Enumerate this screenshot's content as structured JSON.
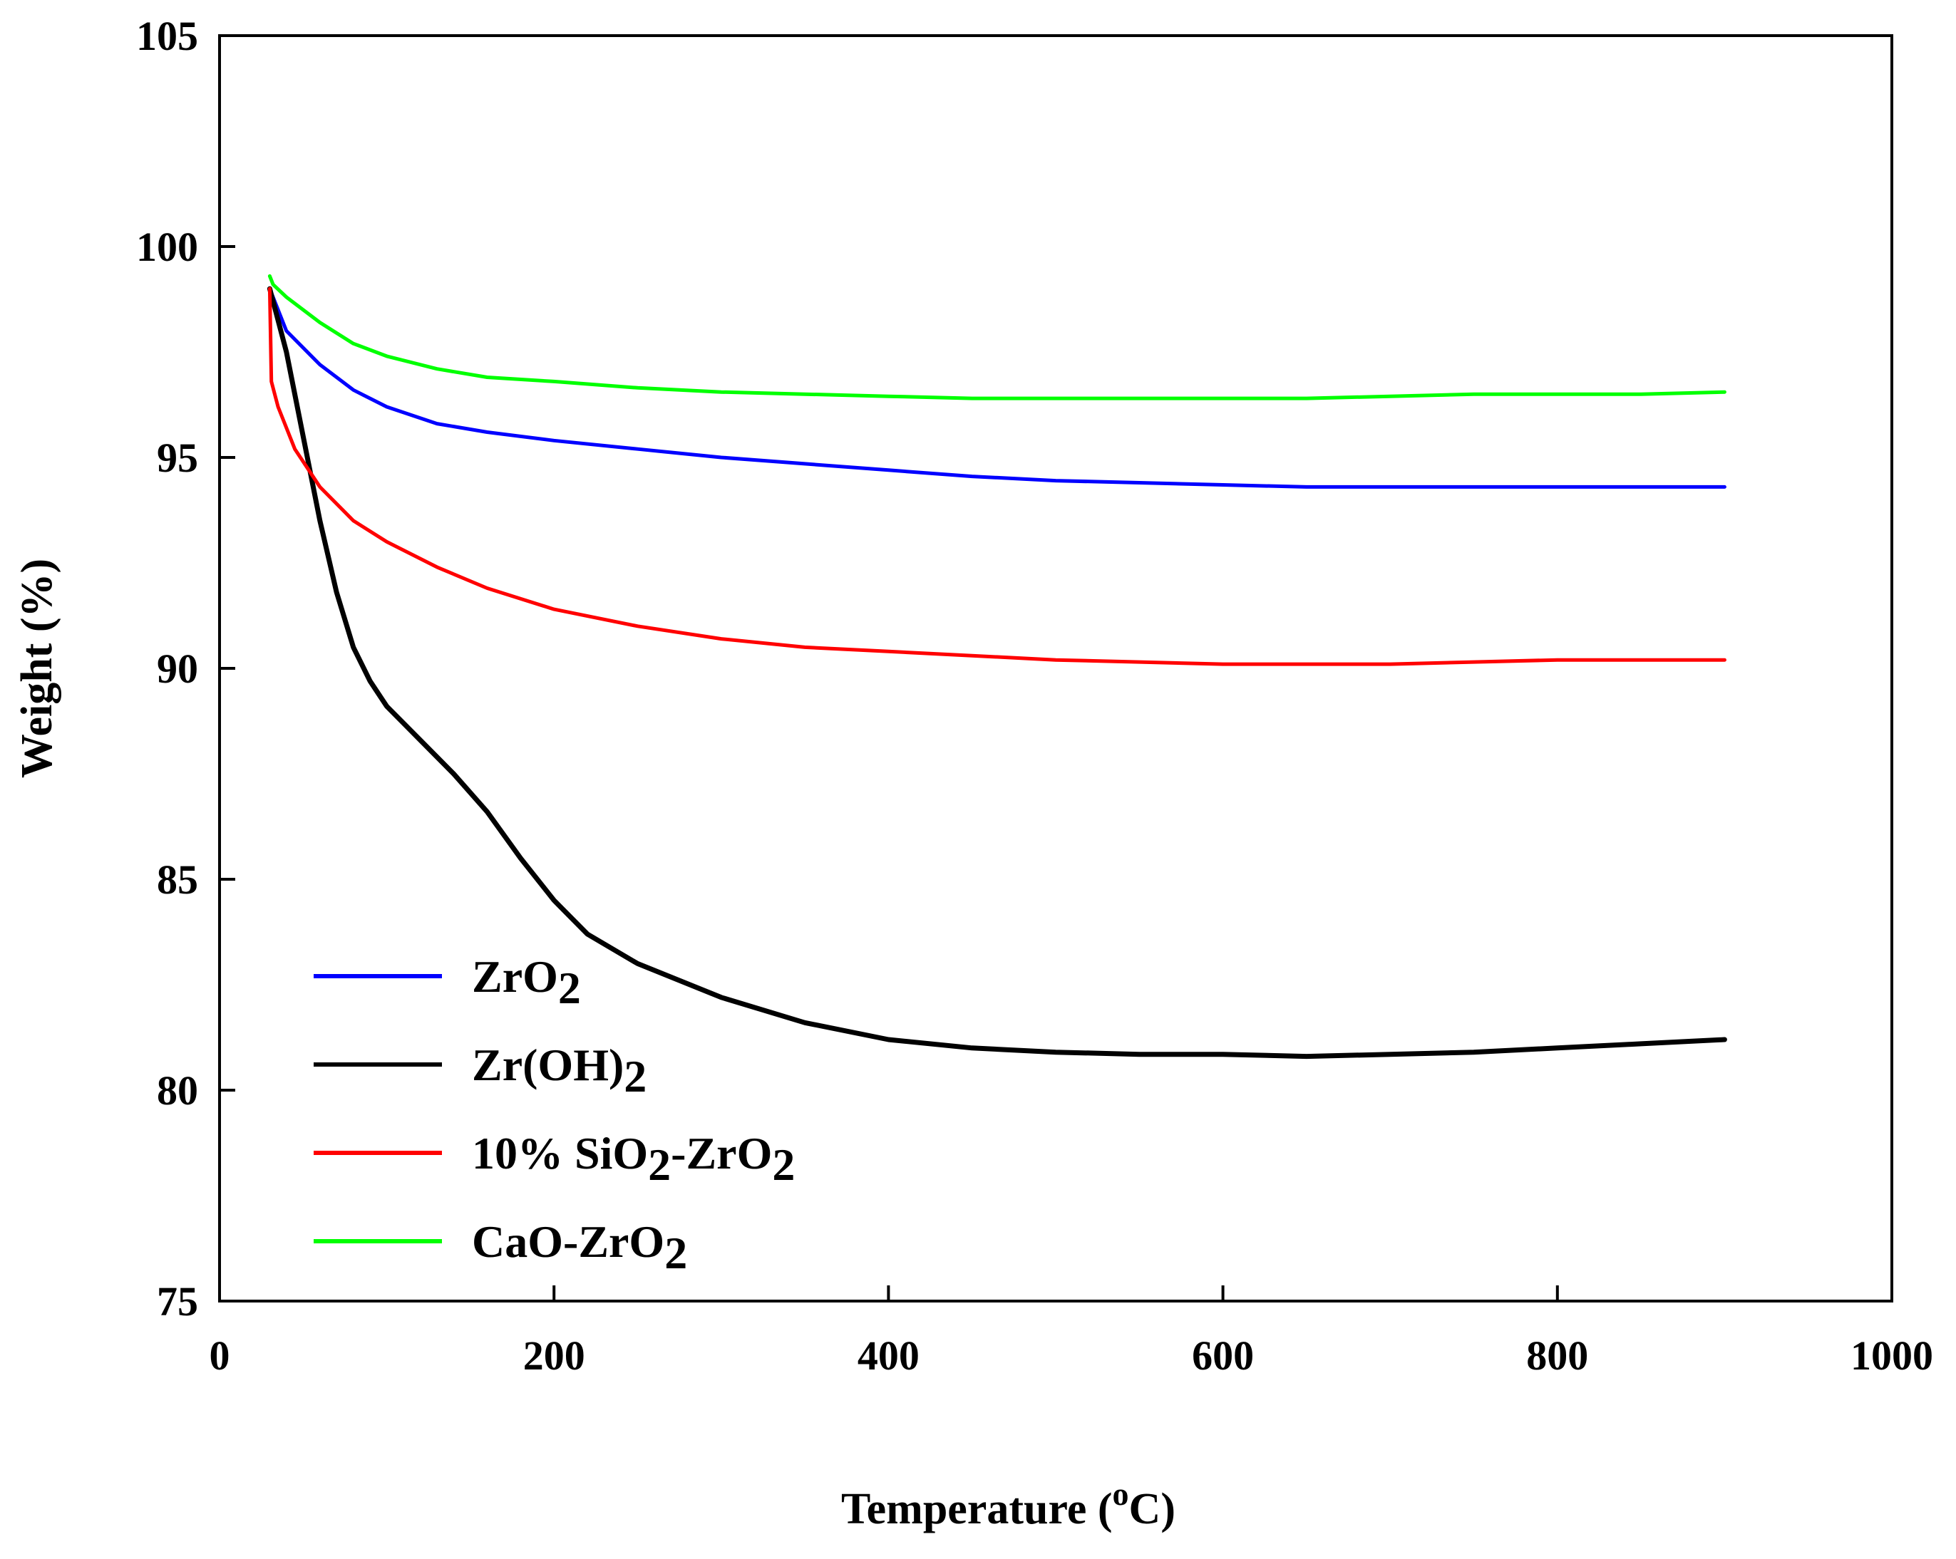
{
  "chart_data": {
    "type": "line",
    "title": "",
    "xlabel": "Temperature (oC)",
    "xlabel_parts": {
      "main": "Temperature (",
      "sup": "o",
      "tail": "C)"
    },
    "ylabel": "Weight (%)",
    "xlim": [
      0,
      1000
    ],
    "ylim": [
      75,
      105
    ],
    "xticks": [
      0,
      200,
      400,
      600,
      800,
      1000
    ],
    "yticks": [
      75,
      80,
      85,
      90,
      95,
      100,
      105
    ],
    "grid": false,
    "legend_position": "bottom-left",
    "series": [
      {
        "name": "ZrO2",
        "label_parts": [
          {
            "t": "ZrO"
          },
          {
            "t": "2",
            "sub": true
          }
        ],
        "color": "#0000ff",
        "x": [
          30,
          40,
          60,
          80,
          100,
          130,
          160,
          200,
          250,
          300,
          350,
          400,
          450,
          500,
          550,
          600,
          650,
          700,
          750,
          800,
          850,
          900
        ],
        "y": [
          99.0,
          98.0,
          97.2,
          96.6,
          96.2,
          95.8,
          95.6,
          95.4,
          95.2,
          95.0,
          94.85,
          94.7,
          94.55,
          94.45,
          94.4,
          94.35,
          94.3,
          94.3,
          94.3,
          94.3,
          94.3,
          94.3
        ]
      },
      {
        "name": "Zr(OH)2",
        "label_parts": [
          {
            "t": "Zr(OH)"
          },
          {
            "t": "2",
            "sub": true
          }
        ],
        "color": "#000000",
        "x": [
          30,
          40,
          50,
          60,
          70,
          80,
          90,
          100,
          120,
          140,
          160,
          180,
          200,
          220,
          250,
          300,
          350,
          400,
          450,
          500,
          550,
          600,
          650,
          700,
          750,
          800,
          850,
          900
        ],
        "y": [
          99.0,
          97.5,
          95.5,
          93.5,
          91.8,
          90.5,
          89.7,
          89.1,
          88.3,
          87.5,
          86.6,
          85.5,
          84.5,
          83.7,
          83.0,
          82.2,
          81.6,
          81.2,
          81.0,
          80.9,
          80.85,
          80.85,
          80.8,
          80.85,
          80.9,
          81.0,
          81.1,
          81.2
        ]
      },
      {
        "name": "10% SiO2-ZrO2",
        "label_parts": [
          {
            "t": "10% SiO"
          },
          {
            "t": "2",
            "sub": true
          },
          {
            "t": "-ZrO"
          },
          {
            "t": "2",
            "sub": true
          }
        ],
        "color": "#ff0000",
        "x": [
          30,
          31,
          35,
          45,
          60,
          80,
          100,
          130,
          160,
          200,
          250,
          300,
          350,
          400,
          450,
          500,
          550,
          600,
          650,
          700,
          750,
          800,
          850,
          900
        ],
        "y": [
          99.0,
          96.8,
          96.2,
          95.2,
          94.3,
          93.5,
          93.0,
          92.4,
          91.9,
          91.4,
          91.0,
          90.7,
          90.5,
          90.4,
          90.3,
          90.2,
          90.15,
          90.1,
          90.1,
          90.1,
          90.15,
          90.2,
          90.2,
          90.2
        ]
      },
      {
        "name": "CaO-ZrO2",
        "label_parts": [
          {
            "t": "CaO-ZrO"
          },
          {
            "t": "2",
            "sub": true
          }
        ],
        "color": "#00ff00",
        "x": [
          30,
          32,
          40,
          60,
          80,
          100,
          130,
          160,
          200,
          250,
          300,
          350,
          400,
          450,
          500,
          550,
          600,
          650,
          700,
          750,
          800,
          850,
          900
        ],
        "y": [
          99.3,
          99.1,
          98.8,
          98.2,
          97.7,
          97.4,
          97.1,
          96.9,
          96.8,
          96.65,
          96.55,
          96.5,
          96.45,
          96.4,
          96.4,
          96.4,
          96.4,
          96.4,
          96.45,
          96.5,
          96.5,
          96.5,
          96.55
        ]
      }
    ]
  }
}
